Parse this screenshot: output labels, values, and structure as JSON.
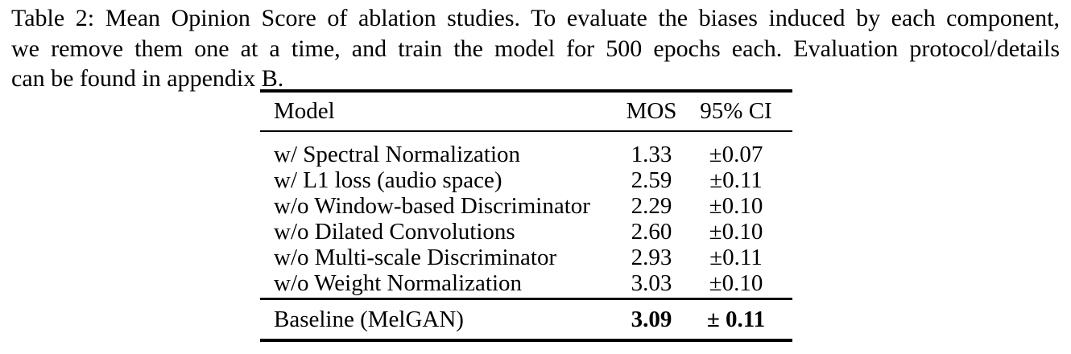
{
  "caption": {
    "lines": [
      "Table 2: Mean Opinion Score of ablation studies. To evaluate the biases induced by each component,",
      "we remove them one at a time, and train the model for 500 epochs each. Evaluation protocol/details",
      "can be found in appendix B."
    ],
    "full_text": "Table 2: Mean Opinion Score of ablation studies. To evaluate the biases induced by each component, we remove them one at a time, and train the model for 500 epochs each. Evaluation protocol/details can be found in appendix B."
  },
  "table": {
    "columns": {
      "model": "Model",
      "mos": "MOS",
      "ci": "95% CI"
    },
    "rows": [
      {
        "model": "w/ Spectral Normalization",
        "mos": "1.33",
        "ci": "±0.07"
      },
      {
        "model": "w/ L1 loss (audio space)",
        "mos": "2.59",
        "ci": "±0.11"
      },
      {
        "model": "w/o Window-based Discriminator",
        "mos": "2.29",
        "ci": "±0.10"
      },
      {
        "model": "w/o Dilated Convolutions",
        "mos": "2.60",
        "ci": "±0.10"
      },
      {
        "model": "w/o Multi-scale Discriminator",
        "mos": "2.93",
        "ci": "±0.11"
      },
      {
        "model": "w/o Weight Normalization",
        "mos": "3.03",
        "ci": "±0.10"
      }
    ],
    "baseline": {
      "model": "Baseline (MelGAN)",
      "mos": "3.09",
      "ci": "± 0.11"
    }
  },
  "colors": {
    "text": "#000000",
    "background": "#ffffff",
    "rule": "#000000"
  }
}
